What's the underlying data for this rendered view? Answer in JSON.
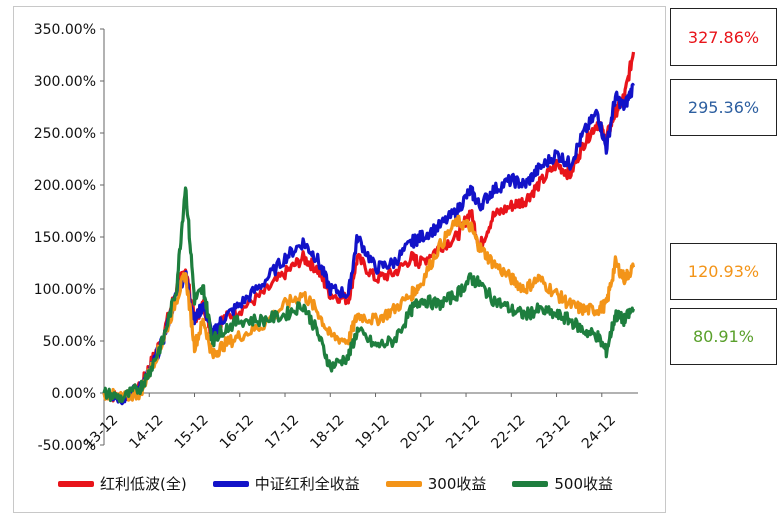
{
  "chart_data": {
    "type": "line",
    "ylim": [
      -50,
      350
    ],
    "y_ticks": [
      -50,
      0,
      50,
      100,
      150,
      200,
      250,
      300,
      350
    ],
    "y_tick_labels": [
      "-50.00%",
      "0.00%",
      "50.00%",
      "100.00%",
      "150.00%",
      "200.00%",
      "250.00%",
      "300.00%",
      "350.00%"
    ],
    "x_tick_labels": [
      "13-12",
      "14-12",
      "15-12",
      "16-12",
      "17-12",
      "18-12",
      "19-12",
      "20-12",
      "21-12",
      "22-12",
      "23-12",
      "24-12"
    ],
    "x_range": [
      0,
      11.8
    ],
    "grid": false,
    "legend_position": "bottom",
    "series": [
      {
        "name": "红利低波(全)",
        "color": "#e8141a",
        "end_label": "327.86%",
        "points": [
          [
            0,
            0
          ],
          [
            0.4,
            -5
          ],
          [
            0.8,
            5
          ],
          [
            1.0,
            25
          ],
          [
            1.3,
            55
          ],
          [
            1.6,
            100
          ],
          [
            1.8,
            120
          ],
          [
            2.0,
            70
          ],
          [
            2.2,
            85
          ],
          [
            2.4,
            55
          ],
          [
            2.6,
            70
          ],
          [
            3.0,
            80
          ],
          [
            3.5,
            95
          ],
          [
            4.0,
            115
          ],
          [
            4.4,
            130
          ],
          [
            4.7,
            120
          ],
          [
            5.0,
            95
          ],
          [
            5.4,
            90
          ],
          [
            5.6,
            130
          ],
          [
            6.0,
            110
          ],
          [
            6.4,
            115
          ],
          [
            6.8,
            130
          ],
          [
            7.0,
            125
          ],
          [
            7.4,
            140
          ],
          [
            7.8,
            150
          ],
          [
            8.1,
            175
          ],
          [
            8.3,
            140
          ],
          [
            8.6,
            170
          ],
          [
            9.0,
            180
          ],
          [
            9.3,
            185
          ],
          [
            9.6,
            200
          ],
          [
            10.0,
            220
          ],
          [
            10.3,
            210
          ],
          [
            10.6,
            240
          ],
          [
            10.9,
            260
          ],
          [
            11.1,
            245
          ],
          [
            11.3,
            270
          ],
          [
            11.5,
            285
          ],
          [
            11.7,
            327.86
          ]
        ]
      },
      {
        "name": "中证红利全收益",
        "color": "#1212c8",
        "end_label": "295.36%",
        "points": [
          [
            0,
            0
          ],
          [
            0.4,
            -5
          ],
          [
            0.8,
            5
          ],
          [
            1.0,
            20
          ],
          [
            1.3,
            50
          ],
          [
            1.6,
            95
          ],
          [
            1.8,
            115
          ],
          [
            2.0,
            70
          ],
          [
            2.2,
            85
          ],
          [
            2.4,
            55
          ],
          [
            2.6,
            70
          ],
          [
            3.0,
            85
          ],
          [
            3.5,
            105
          ],
          [
            4.0,
            130
          ],
          [
            4.4,
            145
          ],
          [
            4.7,
            130
          ],
          [
            5.0,
            100
          ],
          [
            5.4,
            95
          ],
          [
            5.6,
            150
          ],
          [
            6.0,
            120
          ],
          [
            6.4,
            125
          ],
          [
            6.8,
            145
          ],
          [
            7.0,
            150
          ],
          [
            7.4,
            160
          ],
          [
            7.8,
            175
          ],
          [
            8.1,
            195
          ],
          [
            8.3,
            180
          ],
          [
            8.6,
            195
          ],
          [
            9.0,
            205
          ],
          [
            9.3,
            200
          ],
          [
            9.6,
            215
          ],
          [
            10.0,
            230
          ],
          [
            10.3,
            220
          ],
          [
            10.6,
            250
          ],
          [
            10.9,
            270
          ],
          [
            11.1,
            235
          ],
          [
            11.3,
            285
          ],
          [
            11.5,
            275
          ],
          [
            11.7,
            295.36
          ]
        ]
      },
      {
        "name": "300收益",
        "color": "#f39418",
        "end_label": "120.93%",
        "points": [
          [
            0,
            0
          ],
          [
            0.4,
            -5
          ],
          [
            0.8,
            0
          ],
          [
            1.0,
            20
          ],
          [
            1.3,
            50
          ],
          [
            1.6,
            90
          ],
          [
            1.8,
            115
          ],
          [
            2.0,
            45
          ],
          [
            2.2,
            70
          ],
          [
            2.4,
            35
          ],
          [
            2.6,
            45
          ],
          [
            3.0,
            55
          ],
          [
            3.5,
            65
          ],
          [
            4.0,
            85
          ],
          [
            4.4,
            95
          ],
          [
            4.7,
            80
          ],
          [
            5.0,
            55
          ],
          [
            5.4,
            50
          ],
          [
            5.6,
            75
          ],
          [
            6.0,
            70
          ],
          [
            6.4,
            80
          ],
          [
            6.8,
            95
          ],
          [
            7.0,
            105
          ],
          [
            7.4,
            140
          ],
          [
            7.8,
            165
          ],
          [
            8.1,
            160
          ],
          [
            8.3,
            140
          ],
          [
            8.6,
            125
          ],
          [
            9.0,
            110
          ],
          [
            9.3,
            100
          ],
          [
            9.6,
            110
          ],
          [
            10.0,
            95
          ],
          [
            10.3,
            85
          ],
          [
            10.6,
            80
          ],
          [
            10.9,
            80
          ],
          [
            11.1,
            85
          ],
          [
            11.3,
            125
          ],
          [
            11.5,
            110
          ],
          [
            11.7,
            120.93
          ]
        ]
      },
      {
        "name": "500收益",
        "color": "#1e7e3e",
        "end_label": "80.91%",
        "points": [
          [
            0,
            0
          ],
          [
            0.4,
            -5
          ],
          [
            0.8,
            5
          ],
          [
            1.0,
            20
          ],
          [
            1.3,
            50
          ],
          [
            1.6,
            100
          ],
          [
            1.8,
            200
          ],
          [
            2.0,
            90
          ],
          [
            2.2,
            100
          ],
          [
            2.4,
            50
          ],
          [
            2.6,
            60
          ],
          [
            3.0,
            70
          ],
          [
            3.5,
            70
          ],
          [
            4.0,
            75
          ],
          [
            4.4,
            85
          ],
          [
            4.7,
            60
          ],
          [
            5.0,
            25
          ],
          [
            5.4,
            35
          ],
          [
            5.6,
            60
          ],
          [
            6.0,
            45
          ],
          [
            6.4,
            50
          ],
          [
            6.8,
            80
          ],
          [
            7.0,
            90
          ],
          [
            7.4,
            85
          ],
          [
            7.8,
            95
          ],
          [
            8.1,
            110
          ],
          [
            8.3,
            105
          ],
          [
            8.6,
            90
          ],
          [
            9.0,
            80
          ],
          [
            9.3,
            75
          ],
          [
            9.6,
            80
          ],
          [
            10.0,
            75
          ],
          [
            10.3,
            70
          ],
          [
            10.6,
            60
          ],
          [
            10.9,
            55
          ],
          [
            11.1,
            40
          ],
          [
            11.3,
            75
          ],
          [
            11.5,
            70
          ],
          [
            11.7,
            80.91
          ]
        ]
      }
    ]
  }
}
